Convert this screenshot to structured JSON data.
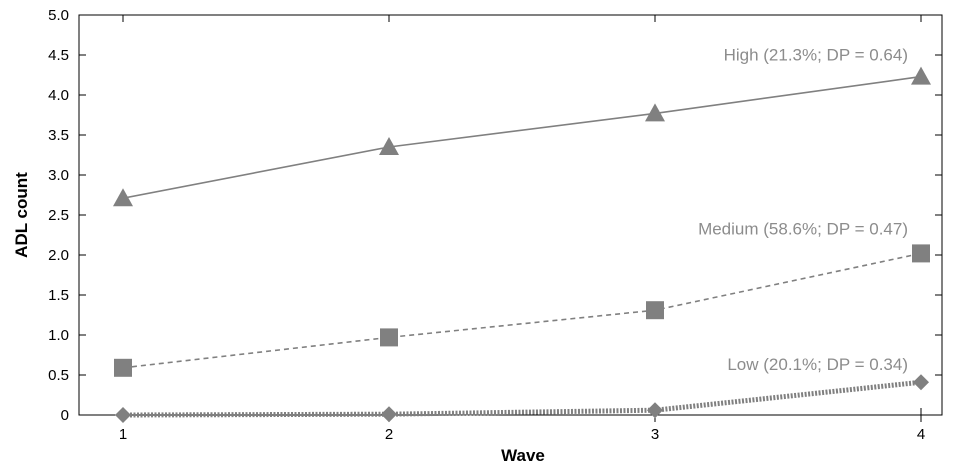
{
  "chart_data": {
    "type": "line",
    "xlabel": "Wave",
    "ylabel": "ADL count",
    "x": [
      1,
      2,
      3,
      4
    ],
    "x_tick_labels": [
      "1",
      "2",
      "3",
      "4"
    ],
    "xlim": [
      1,
      4
    ],
    "ylim": [
      0,
      5.0
    ],
    "y_ticks": [
      0,
      0.5,
      1.0,
      1.5,
      2.0,
      2.5,
      3.0,
      3.5,
      4.0,
      4.5,
      5.0
    ],
    "y_tick_labels": [
      "0",
      "0.5",
      "1.0",
      "1.5",
      "2.0",
      "2.5",
      "3.0",
      "3.5",
      "4.0",
      "4.5",
      "5.0"
    ],
    "grid": false,
    "series": [
      {
        "name": "High (21.3%; DP = 0.64)",
        "values": [
          2.71,
          3.35,
          3.77,
          4.23
        ],
        "marker": "triangle",
        "line_style": "solid",
        "color": "#808080"
      },
      {
        "name": "Medium (58.6%; DP = 0.47)",
        "values": [
          0.59,
          0.97,
          1.31,
          2.02
        ],
        "marker": "square",
        "line_style": "dashed",
        "color": "#808080"
      },
      {
        "name": "Low (20.1%; DP = 0.34)",
        "values": [
          0.0,
          0.01,
          0.06,
          0.41
        ],
        "marker": "diamond",
        "line_style": "dotted-thick",
        "color": "#808080"
      }
    ]
  }
}
